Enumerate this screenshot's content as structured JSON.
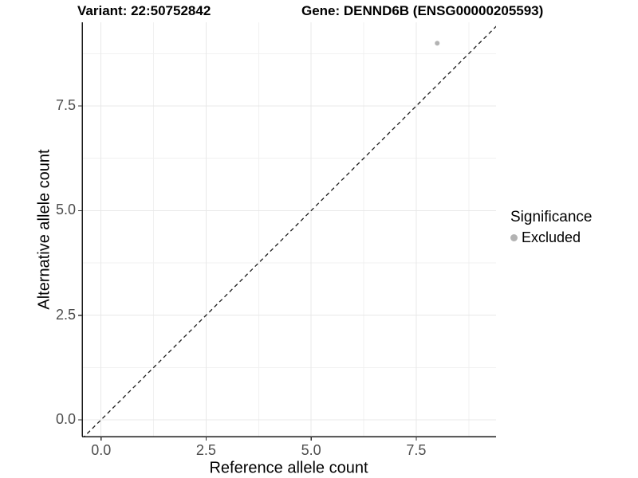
{
  "header": {
    "title_left": "Variant: 22:50752842",
    "title_right": "Gene: DENND6B (ENSG00000205593)"
  },
  "chart_data": {
    "type": "scatter",
    "title": "Variant: 22:50752842   Gene: DENND6B (ENSG00000205593)",
    "xlabel": "Reference allele count",
    "ylabel": "Alternative allele count",
    "xlim": [
      -0.45,
      9.4
    ],
    "ylim": [
      -0.4,
      9.5
    ],
    "xticks": [
      0.0,
      2.5,
      5.0,
      7.5
    ],
    "yticks": [
      0.0,
      2.5,
      5.0,
      7.5
    ],
    "tick_label_decimals": 1,
    "minor_grid_step": 1.25,
    "grid": "major+minor on white background",
    "legend_position": "right",
    "series": [
      {
        "name": "Excluded",
        "color": "#b3b3b3",
        "points": [
          {
            "x": 8,
            "y": 9
          }
        ]
      }
    ],
    "reference_line": {
      "kind": "identity",
      "slope": 1,
      "intercept": 0,
      "style": "dashed",
      "color": "#1a1a1a"
    }
  },
  "legend": {
    "title": "Significance",
    "entries": [
      {
        "label": "Excluded",
        "color": "#b3b3b3"
      }
    ]
  },
  "colors": {
    "background": "#ffffff",
    "major_grid": "#e8e8e8",
    "minor_grid": "#f1f1f1",
    "axis_line": "#1a1a1a",
    "tick_mark": "#333333",
    "tick_label": "#4d4d4d"
  }
}
